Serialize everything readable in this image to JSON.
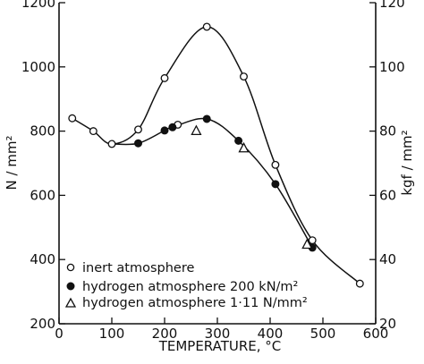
{
  "chart_data": {
    "type": "line",
    "xlabel": "TEMPERATURE, °C",
    "ylabel": "N / mm²",
    "y2label": "kgf / mm²",
    "xlim": [
      0,
      600
    ],
    "ylim": [
      200,
      1200
    ],
    "y2lim": [
      20,
      120
    ],
    "xticks": [
      "0",
      "100",
      "200",
      "300",
      "400",
      "500",
      "600"
    ],
    "yticks": [
      "200",
      "400",
      "600",
      "800",
      "1000",
      "1200"
    ],
    "y2ticks": [
      "20",
      "40",
      "60",
      "80",
      "100",
      "120"
    ],
    "grid": false,
    "legend_position": "bottom-left",
    "series": [
      {
        "name": "inert atmosphere",
        "marker": "open-circle",
        "x": [
          25,
          65,
          100,
          150,
          200,
          225,
          280,
          350,
          410,
          480,
          570
        ],
        "y": [
          840,
          800,
          760,
          805,
          965,
          820,
          1125,
          970,
          695,
          460,
          325
        ]
      },
      {
        "name": "hydrogen atmosphere  200 kN/m²",
        "marker": "filled-circle",
        "x": [
          150,
          200,
          215,
          280,
          340,
          410,
          480
        ],
        "y": [
          762,
          802,
          812,
          838,
          770,
          635,
          437
        ]
      },
      {
        "name": "hydrogen  atmosphere  1·11  N/mm²",
        "marker": "open-triangle",
        "x": [
          260,
          350,
          470
        ],
        "y": [
          802,
          748,
          448
        ]
      }
    ]
  }
}
